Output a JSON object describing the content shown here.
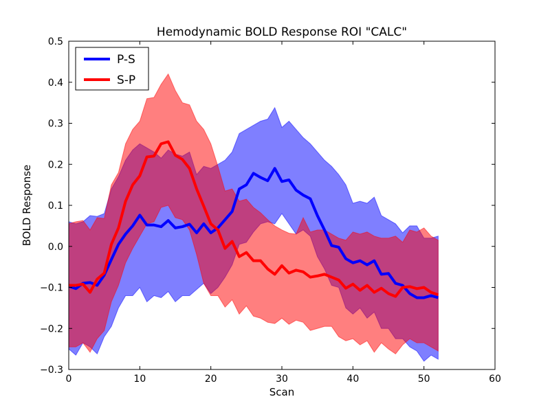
{
  "chart_data": {
    "type": "line",
    "title": "Hemodynamic BOLD Response ROI \"CALC\"",
    "xlabel": "Scan",
    "ylabel": "BOLD Response",
    "xlim": [
      0,
      60
    ],
    "ylim": [
      -0.3,
      0.5
    ],
    "xticks": [
      0,
      10,
      20,
      30,
      40,
      50,
      60
    ],
    "yticks": [
      -0.3,
      -0.2,
      -0.1,
      0.0,
      0.1,
      0.2,
      0.3,
      0.4,
      0.5
    ],
    "xtick_labels": [
      "0",
      "10",
      "20",
      "30",
      "40",
      "50",
      "60"
    ],
    "ytick_labels": [
      "−0.3",
      "−0.2",
      "−0.1",
      "0.0",
      "0.1",
      "0.2",
      "0.3",
      "0.4",
      "0.5"
    ],
    "grid": false,
    "legend_position": "top-left",
    "series": [
      {
        "name": "P-S",
        "color": "#0000ff",
        "band_color": "#0000ff",
        "x": [
          0,
          1,
          2,
          3,
          4,
          5,
          6,
          7,
          8,
          9,
          10,
          11,
          12,
          13,
          14,
          15,
          16,
          17,
          18,
          19,
          20,
          21,
          22,
          23,
          24,
          25,
          26,
          27,
          28,
          29,
          30,
          31,
          32,
          33,
          34,
          35,
          36,
          37,
          38,
          39,
          40,
          41,
          42,
          43,
          44,
          45,
          46,
          47,
          48,
          49,
          50,
          51,
          52
        ],
        "values": [
          -0.097,
          -0.103,
          -0.09,
          -0.088,
          -0.095,
          -0.07,
          -0.032,
          0.005,
          0.03,
          0.05,
          0.076,
          0.052,
          0.052,
          0.048,
          0.063,
          0.045,
          0.048,
          0.054,
          0.033,
          0.055,
          0.033,
          0.045,
          0.065,
          0.085,
          0.14,
          0.15,
          0.178,
          0.168,
          0.16,
          0.19,
          0.158,
          0.162,
          0.137,
          0.125,
          0.116,
          0.075,
          0.04,
          0.002,
          -0.002,
          -0.03,
          -0.04,
          -0.035,
          -0.045,
          -0.035,
          -0.068,
          -0.066,
          -0.09,
          -0.095,
          -0.115,
          -0.125,
          -0.125,
          -0.12,
          -0.125
        ],
        "upper": [
          0.06,
          0.055,
          0.06,
          0.075,
          0.073,
          0.08,
          0.14,
          0.17,
          0.21,
          0.235,
          0.25,
          0.24,
          0.23,
          0.215,
          0.235,
          0.225,
          0.22,
          0.23,
          0.175,
          0.195,
          0.19,
          0.2,
          0.21,
          0.23,
          0.275,
          0.285,
          0.295,
          0.305,
          0.31,
          0.338,
          0.29,
          0.305,
          0.285,
          0.265,
          0.25,
          0.23,
          0.21,
          0.195,
          0.175,
          0.15,
          0.105,
          0.11,
          0.105,
          0.12,
          0.075,
          0.065,
          0.055,
          0.033,
          0.05,
          0.05,
          0.02,
          0.02,
          0.025
        ],
        "lower": [
          -0.25,
          -0.265,
          -0.235,
          -0.245,
          -0.262,
          -0.22,
          -0.195,
          -0.15,
          -0.12,
          -0.12,
          -0.1,
          -0.135,
          -0.12,
          -0.125,
          -0.11,
          -0.135,
          -0.12,
          -0.12,
          -0.105,
          -0.09,
          -0.115,
          -0.1,
          -0.075,
          -0.045,
          0.005,
          0.01,
          0.035,
          0.055,
          0.06,
          0.055,
          0.08,
          0.055,
          0.03,
          0.04,
          0.025,
          -0.025,
          -0.055,
          -0.095,
          -0.1,
          -0.15,
          -0.165,
          -0.15,
          -0.175,
          -0.16,
          -0.2,
          -0.2,
          -0.225,
          -0.225,
          -0.245,
          -0.255,
          -0.28,
          -0.265,
          -0.275
        ]
      },
      {
        "name": "S-P",
        "color": "#ff0000",
        "band_color": "#ff0000",
        "x": [
          0,
          1,
          2,
          3,
          4,
          5,
          6,
          7,
          8,
          9,
          10,
          11,
          12,
          13,
          14,
          15,
          16,
          17,
          18,
          19,
          20,
          21,
          22,
          23,
          24,
          25,
          26,
          27,
          28,
          29,
          30,
          31,
          32,
          33,
          34,
          35,
          36,
          37,
          38,
          39,
          40,
          41,
          42,
          43,
          44,
          45,
          46,
          47,
          48,
          49,
          50,
          51,
          52
        ],
        "values": [
          -0.095,
          -0.095,
          -0.092,
          -0.112,
          -0.08,
          -0.065,
          0.005,
          0.045,
          0.11,
          0.15,
          0.172,
          0.218,
          0.22,
          0.25,
          0.255,
          0.222,
          0.212,
          0.19,
          0.14,
          0.098,
          0.055,
          0.04,
          -0.005,
          0.012,
          -0.025,
          -0.015,
          -0.035,
          -0.035,
          -0.055,
          -0.068,
          -0.047,
          -0.065,
          -0.058,
          -0.062,
          -0.075,
          -0.072,
          -0.068,
          -0.075,
          -0.082,
          -0.102,
          -0.092,
          -0.107,
          -0.095,
          -0.112,
          -0.102,
          -0.115,
          -0.122,
          -0.1,
          -0.098,
          -0.103,
          -0.1,
          -0.112,
          -0.118
        ],
        "upper": [
          0.055,
          0.06,
          0.063,
          0.04,
          0.07,
          0.068,
          0.15,
          0.18,
          0.25,
          0.285,
          0.305,
          0.36,
          0.363,
          0.395,
          0.42,
          0.38,
          0.35,
          0.345,
          0.305,
          0.285,
          0.25,
          0.195,
          0.135,
          0.14,
          0.11,
          0.115,
          0.095,
          0.082,
          0.065,
          0.05,
          0.04,
          0.032,
          0.03,
          0.07,
          0.035,
          0.04,
          0.04,
          0.03,
          0.02,
          0.015,
          0.035,
          0.03,
          0.035,
          0.025,
          0.02,
          0.02,
          0.025,
          0.01,
          0.04,
          0.035,
          0.045,
          0.025,
          0.015
        ],
        "lower": [
          -0.245,
          -0.245,
          -0.235,
          -0.258,
          -0.225,
          -0.205,
          -0.135,
          -0.095,
          -0.04,
          -0.005,
          0.025,
          0.055,
          0.06,
          0.095,
          0.1,
          0.07,
          0.065,
          0.04,
          -0.02,
          -0.09,
          -0.12,
          -0.12,
          -0.148,
          -0.13,
          -0.165,
          -0.145,
          -0.17,
          -0.175,
          -0.185,
          -0.188,
          -0.175,
          -0.19,
          -0.18,
          -0.185,
          -0.205,
          -0.2,
          -0.195,
          -0.195,
          -0.22,
          -0.23,
          -0.225,
          -0.24,
          -0.23,
          -0.258,
          -0.235,
          -0.25,
          -0.262,
          -0.24,
          -0.225,
          -0.235,
          -0.235,
          -0.245,
          -0.255
        ]
      }
    ]
  }
}
